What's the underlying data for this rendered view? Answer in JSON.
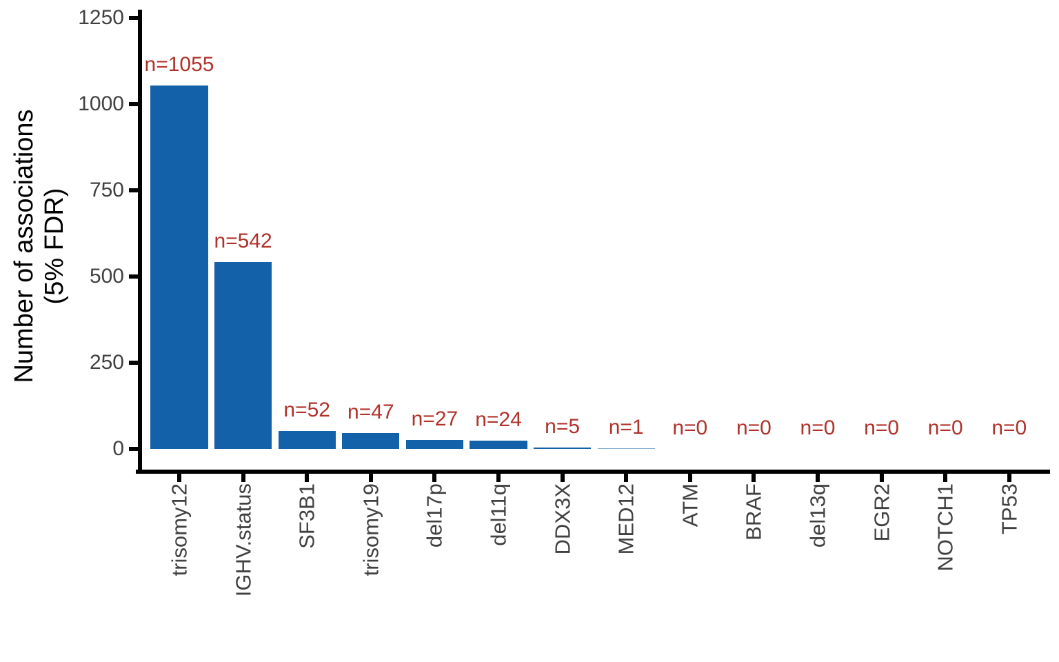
{
  "chart_data": {
    "type": "bar",
    "title": "",
    "xlabel": "",
    "ylabel": "Number of associations (5% FDR)",
    "ylabel_lines": [
      "Number of associations",
      "(5% FDR)"
    ],
    "categories": [
      "trisomy12",
      "IGHV.status",
      "SF3B1",
      "trisomy19",
      "del17p",
      "del11q",
      "DDX3X",
      "MED12",
      "ATM",
      "BRAF",
      "del13q",
      "EGR2",
      "NOTCH1",
      "TP53"
    ],
    "values": [
      1055,
      542,
      52,
      47,
      27,
      24,
      5,
      1,
      0,
      0,
      0,
      0,
      0,
      0
    ],
    "bar_labels": [
      "n=1055",
      "n=542",
      "n=52",
      "n=47",
      "n=27",
      "n=24",
      "n=5",
      "n=1",
      "n=0",
      "n=0",
      "n=0",
      "n=0",
      "n=0",
      "n=0"
    ],
    "yticks": [
      0,
      250,
      500,
      750,
      1000,
      1250
    ],
    "ytick_labels": [
      "0",
      "250",
      "500",
      "750",
      "1000",
      "1250"
    ],
    "ylim": [
      0,
      1250
    ],
    "grid": false,
    "legend": false,
    "bar_orientation": "vertical",
    "x_label_rotation_deg": 90,
    "colors": {
      "bar": "#1261A9",
      "bar_thin": "#7FA8D2",
      "value_label": "#B0322B",
      "axis": "#000000",
      "tick_label": "#404040",
      "axis_title": "#000000",
      "background": "#ffffff"
    }
  }
}
